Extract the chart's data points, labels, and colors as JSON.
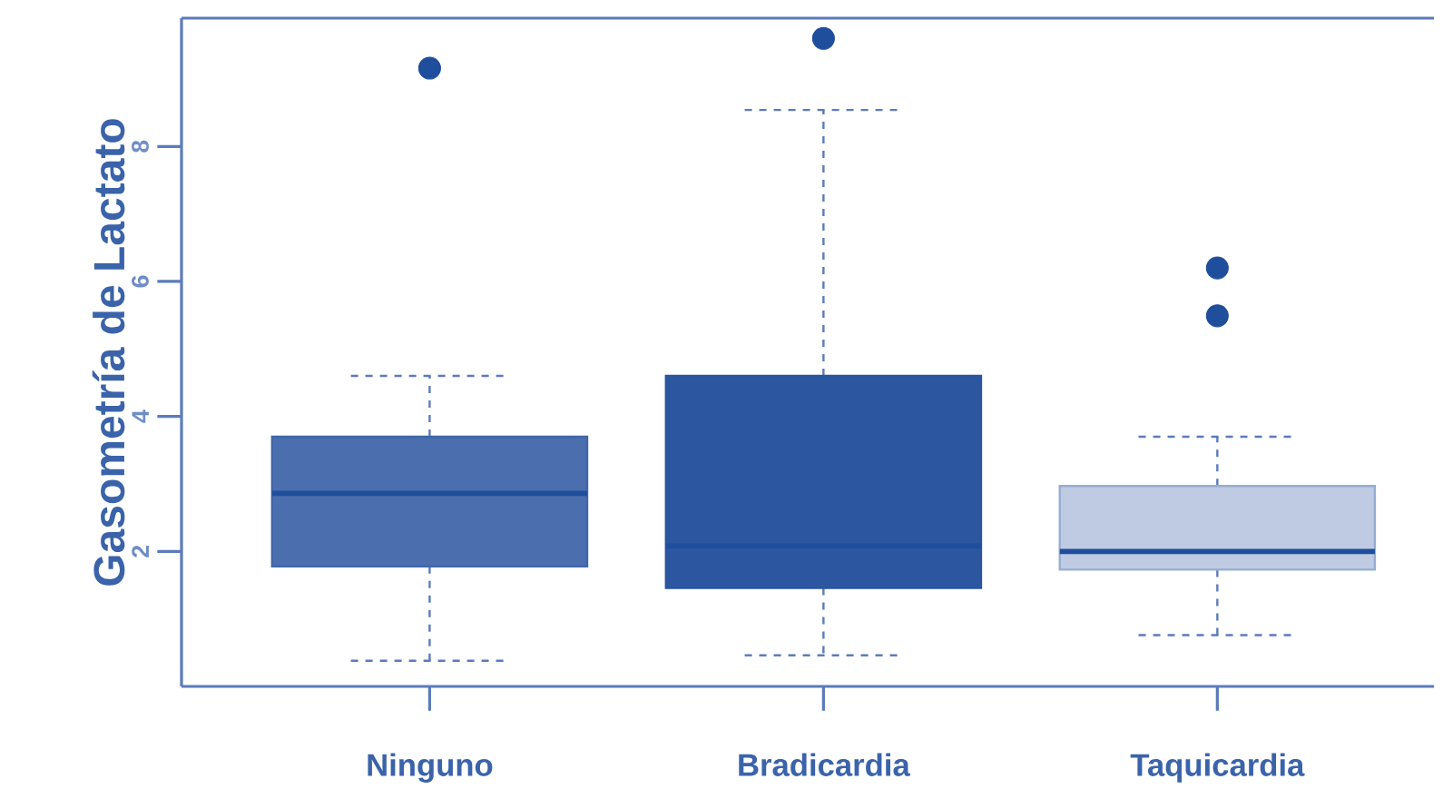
{
  "chart_data": {
    "type": "box",
    "ylabel": "Gasometría de Lactato",
    "categories": [
      "Ninguno",
      "Bradicardia",
      "Taquicardia"
    ],
    "boxes": [
      {
        "low": 0.38,
        "q1": 1.78,
        "median": 2.86,
        "q3": 3.7,
        "high": 4.6,
        "outliers": [
          9.16
        ]
      },
      {
        "low": 0.46,
        "q1": 1.46,
        "median": 2.08,
        "q3": 4.6,
        "high": 8.54,
        "outliers": [
          9.6
        ]
      },
      {
        "low": 0.76,
        "q1": 1.73,
        "median": 2.0,
        "q3": 2.97,
        "high": 3.7,
        "outliers": [
          5.49,
          6.2
        ]
      }
    ],
    "colors": [
      "#4a6eae",
      "#2c57a0",
      "#bfcbe3"
    ],
    "ylim": [
      0,
      9.9
    ],
    "yticks": [
      2,
      4,
      6,
      8
    ],
    "grid": false
  }
}
